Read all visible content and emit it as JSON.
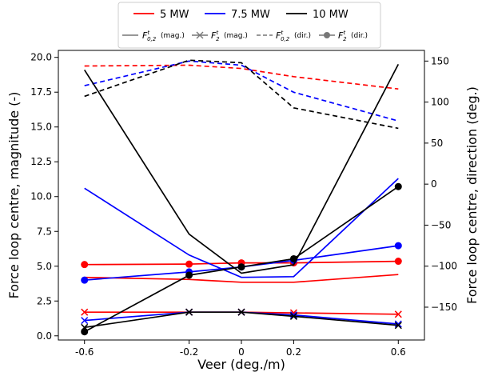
{
  "chart_data": {
    "type": "line",
    "x": [
      -0.6,
      -0.2,
      0,
      0.2,
      0.6
    ],
    "x_tick_labels": [
      "-0.6",
      "-0.2",
      "0",
      "0.2",
      "0.6"
    ],
    "xlabel": "Veer (deg./m)",
    "ylabel_left": "Force loop centre, magnitude (-)",
    "ylabel_right": "Force loop centre, direction (deg.)",
    "ylim_left": [
      -0.3,
      20.5
    ],
    "ylim_right": [
      -190,
      163
    ],
    "yticks_left": [
      "0.0",
      "2.5",
      "5.0",
      "7.5",
      "10.0",
      "12.5",
      "15.0",
      "17.5",
      "20.0"
    ],
    "yticks_right": [
      "150",
      "100",
      "50",
      "0",
      "−50",
      "−100",
      "−150"
    ],
    "grid": false,
    "legend_placement": "top, above plot",
    "legend_power": [
      {
        "label": "5 MW",
        "color": "#ff0000"
      },
      {
        "label": "7.5 MW",
        "color": "#0000ff"
      },
      {
        "label": "10 MW",
        "color": "#000000"
      }
    ],
    "legend_style": [
      {
        "label": "(mag.)",
        "symbol_base": "F",
        "symbol_sup": "t",
        "symbol_sub": "0,2",
        "style": "solid"
      },
      {
        "label": "(mag.)",
        "symbol_base": "F",
        "symbol_sup": "t",
        "symbol_sub": "2",
        "style": "x"
      },
      {
        "label": "(dir.)",
        "symbol_base": "F",
        "symbol_sup": "t",
        "symbol_sub": "0,2",
        "style": "dashed"
      },
      {
        "label": "(dir.)",
        "symbol_base": "F",
        "symbol_sup": "t",
        "symbol_sub": "2",
        "style": "dot"
      }
    ],
    "series": [
      {
        "name": "5 MW",
        "kind": "F_t_0,2 (mag.)",
        "axis": "left",
        "style": "solid",
        "color": "#ff0000",
        "values": [
          4.2,
          4.05,
          3.85,
          3.85,
          4.4
        ]
      },
      {
        "name": "5 MW",
        "kind": "F_t_2 (mag.)",
        "axis": "left",
        "style": "x",
        "color": "#ff0000",
        "values": [
          1.7,
          1.7,
          1.7,
          1.65,
          1.55
        ]
      },
      {
        "name": "5 MW",
        "kind": "F_t_0,2 (dir.)",
        "axis": "right",
        "style": "dashed",
        "color": "#ff0000",
        "values": [
          144,
          145,
          141,
          131,
          116
        ]
      },
      {
        "name": "5 MW",
        "kind": "F_t_2 (dir.)",
        "axis": "right",
        "style": "dot",
        "color": "#ff0000",
        "values": [
          -98,
          -97.5,
          -96,
          -96,
          -94
        ]
      },
      {
        "name": "7.5 MW",
        "kind": "F_t_0,2 (mag.)",
        "axis": "left",
        "style": "solid",
        "color": "#0000ff",
        "values": [
          10.6,
          5.8,
          4.2,
          4.25,
          11.3
        ]
      },
      {
        "name": "7.5 MW",
        "kind": "F_t_2 (mag.)",
        "axis": "left",
        "style": "x",
        "color": "#0000ff",
        "values": [
          1.1,
          1.7,
          1.7,
          1.5,
          0.85
        ]
      },
      {
        "name": "7.5 MW",
        "kind": "F_t_0,2 (dir.)",
        "axis": "right",
        "style": "dashed",
        "color": "#0000ff",
        "values": [
          120,
          150,
          145,
          112,
          77
        ]
      },
      {
        "name": "7.5 MW",
        "kind": "F_t_2 (dir.)",
        "axis": "right",
        "style": "dot",
        "color": "#0000ff",
        "values": [
          -117,
          -107,
          -101,
          -93,
          -75
        ]
      },
      {
        "name": "10 MW",
        "kind": "F_t_0,2 (mag.)",
        "axis": "left",
        "style": "solid",
        "color": "#000000",
        "values": [
          19.1,
          7.3,
          4.5,
          5.1,
          19.5
        ]
      },
      {
        "name": "10 MW",
        "kind": "F_t_2 (mag.)",
        "axis": "left",
        "style": "x",
        "color": "#000000",
        "values": [
          0.6,
          1.7,
          1.7,
          1.4,
          0.75
        ]
      },
      {
        "name": "10 MW",
        "kind": "F_t_0,2 (dir.)",
        "axis": "right",
        "style": "dashed",
        "color": "#000000",
        "values": [
          107,
          151,
          148,
          93,
          68
        ]
      },
      {
        "name": "10 MW",
        "kind": "F_t_2 (dir.)",
        "axis": "right",
        "style": "dot",
        "color": "#000000",
        "values": [
          -180,
          -111,
          -101,
          -91,
          -3
        ]
      }
    ]
  }
}
